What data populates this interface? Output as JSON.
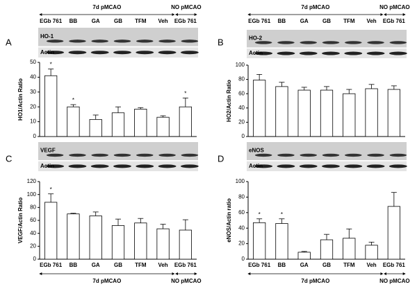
{
  "chart_data": [
    {
      "type": "bar",
      "panel": "A",
      "ylabel": "HO1/Actin Ratio",
      "blot_labels": [
        "HO-1",
        "Actin"
      ],
      "categories": [
        "EGb 761",
        "BB",
        "GA",
        "GB",
        "TFM",
        "Veh",
        "EGb 761"
      ],
      "values": [
        41,
        20,
        11.5,
        16,
        18.5,
        13,
        20
      ],
      "errors": [
        4.5,
        1.5,
        3,
        4,
        1,
        1,
        6
      ],
      "markers": [
        "*",
        "*",
        null,
        null,
        null,
        null,
        "*"
      ],
      "groups": [
        {
          "label": "7d pMCAO",
          "span": [
            0,
            5
          ]
        },
        {
          "label": "NO pMCAO",
          "span": [
            6,
            6
          ]
        }
      ],
      "ylim": [
        0,
        50
      ],
      "yticks": [
        0,
        10,
        20,
        30,
        40,
        50
      ],
      "color": "#ffffff"
    },
    {
      "type": "bar",
      "panel": "B",
      "ylabel": "HO2/Actin Ratio",
      "blot_labels": [
        "HO-2",
        "Actin"
      ],
      "categories": [
        "EGb 761",
        "BB",
        "GA",
        "GB",
        "TFM",
        "Veh",
        "EGb 761"
      ],
      "values": [
        79,
        70,
        65,
        65,
        60,
        67,
        66
      ],
      "errors": [
        8,
        6,
        4,
        5,
        6,
        6,
        5
      ],
      "markers": [
        null,
        null,
        null,
        null,
        null,
        null,
        null
      ],
      "groups": [
        {
          "label": "7d pMCAO",
          "span": [
            0,
            5
          ]
        },
        {
          "label": "NO pMCAO",
          "span": [
            6,
            6
          ]
        }
      ],
      "ylim": [
        0,
        100
      ],
      "yticks": [
        0,
        20,
        40,
        60,
        80,
        100
      ],
      "color": "#ffffff"
    },
    {
      "type": "bar",
      "panel": "C",
      "ylabel": "VEGF/Actin Ratio",
      "blot_labels": [
        "VEGF",
        "Actin"
      ],
      "categories": [
        "EGb 761",
        "BB",
        "GA",
        "GB",
        "TFM",
        "Veh",
        "EGb 761"
      ],
      "values": [
        88,
        70,
        67,
        52,
        56,
        47,
        45
      ],
      "errors": [
        13,
        1,
        6,
        10,
        7,
        7,
        16
      ],
      "markers": [
        "*",
        null,
        null,
        null,
        null,
        null,
        null
      ],
      "groups": [
        {
          "label": "7d pMCAO",
          "span": [
            0,
            5
          ]
        },
        {
          "label": "NO pMCAO",
          "span": [
            6,
            6
          ]
        }
      ],
      "ylim": [
        0,
        120
      ],
      "yticks": [
        0,
        20,
        40,
        60,
        80,
        100,
        120
      ],
      "color": "#ffffff"
    },
    {
      "type": "bar",
      "panel": "D",
      "ylabel": "eNOS/Actin ratio",
      "blot_labels": [
        "eNOS",
        "Actin"
      ],
      "categories": [
        "EGb 761",
        "BB",
        "GA",
        "GB",
        "TFM",
        "Veh",
        "EGb 761"
      ],
      "values": [
        47,
        46,
        9,
        25,
        27,
        18,
        68
      ],
      "errors": [
        5,
        6,
        1,
        7,
        12,
        4,
        18
      ],
      "markers": [
        "*",
        "*",
        null,
        null,
        null,
        null,
        null
      ],
      "groups": [
        {
          "label": "7d pMCAO",
          "span": [
            0,
            5
          ]
        },
        {
          "label": "NO pMCAO",
          "span": [
            6,
            6
          ]
        }
      ],
      "ylim": [
        0,
        100
      ],
      "yticks": [
        0,
        20,
        40,
        60,
        80,
        100
      ],
      "color": "#ffffff"
    }
  ]
}
